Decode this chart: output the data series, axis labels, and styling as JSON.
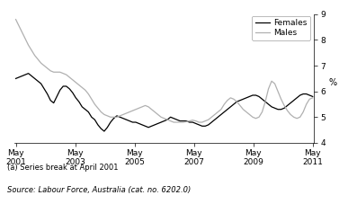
{
  "ylabel": "%",
  "ylim": [
    4,
    9
  ],
  "yticks": [
    4,
    5,
    6,
    7,
    8,
    9
  ],
  "footnote_a": "(a) Series break at April 2001",
  "source": "Source: Labour Force, Australia (cat. no. 6202.0)",
  "legend_females": "Females",
  "legend_males": "Males",
  "females_color": "#000000",
  "males_color": "#b0b0b0",
  "background_color": "#ffffff",
  "females_data": [
    6.5,
    6.55,
    6.6,
    6.65,
    6.7,
    6.6,
    6.5,
    6.4,
    6.3,
    6.1,
    5.9,
    5.65,
    5.55,
    5.8,
    6.05,
    6.2,
    6.2,
    6.1,
    5.95,
    5.75,
    5.6,
    5.4,
    5.3,
    5.2,
    5.0,
    4.9,
    4.7,
    4.55,
    4.45,
    4.6,
    4.8,
    4.95,
    5.05,
    5.0,
    4.95,
    4.9,
    4.85,
    4.8,
    4.8,
    4.75,
    4.7,
    4.65,
    4.6,
    4.65,
    4.7,
    4.75,
    4.8,
    4.85,
    4.9,
    5.0,
    4.95,
    4.9,
    4.85,
    4.85,
    4.85,
    4.8,
    4.8,
    4.75,
    4.7,
    4.65,
    4.65,
    4.7,
    4.8,
    4.9,
    5.0,
    5.1,
    5.2,
    5.3,
    5.4,
    5.5,
    5.6,
    5.65,
    5.7,
    5.75,
    5.8,
    5.85,
    5.85,
    5.8,
    5.7,
    5.6,
    5.5,
    5.4,
    5.35,
    5.3,
    5.3,
    5.35,
    5.45,
    5.55,
    5.65,
    5.75,
    5.85,
    5.9,
    5.9,
    5.85,
    5.8
  ],
  "males_data": [
    8.8,
    8.55,
    8.3,
    8.05,
    7.8,
    7.6,
    7.4,
    7.25,
    7.1,
    7.0,
    6.9,
    6.8,
    6.75,
    6.75,
    6.75,
    6.7,
    6.65,
    6.55,
    6.45,
    6.35,
    6.25,
    6.15,
    6.05,
    5.9,
    5.7,
    5.5,
    5.35,
    5.2,
    5.1,
    5.05,
    5.0,
    5.0,
    5.0,
    5.05,
    5.1,
    5.15,
    5.2,
    5.25,
    5.3,
    5.35,
    5.4,
    5.45,
    5.4,
    5.3,
    5.2,
    5.1,
    5.0,
    4.95,
    4.9,
    4.85,
    4.8,
    4.8,
    4.8,
    4.8,
    4.82,
    4.85,
    4.88,
    4.85,
    4.8,
    4.8,
    4.85,
    4.9,
    5.0,
    5.1,
    5.2,
    5.3,
    5.5,
    5.65,
    5.75,
    5.7,
    5.6,
    5.45,
    5.3,
    5.2,
    5.1,
    5.0,
    4.95,
    5.0,
    5.2,
    5.6,
    6.1,
    6.4,
    6.3,
    6.0,
    5.7,
    5.45,
    5.25,
    5.1,
    5.0,
    4.95,
    5.0,
    5.2,
    5.5,
    5.7,
    5.75
  ],
  "x_start": 2001.333,
  "x_end": 2011.333,
  "xtick_positions": [
    2001.333,
    2003.333,
    2005.333,
    2007.333,
    2009.333,
    2011.333
  ],
  "xtick_labels": [
    "May\n2001",
    "May\n2003",
    "May\n2005",
    "May\n2007",
    "May\n2009",
    "May\n2011"
  ]
}
